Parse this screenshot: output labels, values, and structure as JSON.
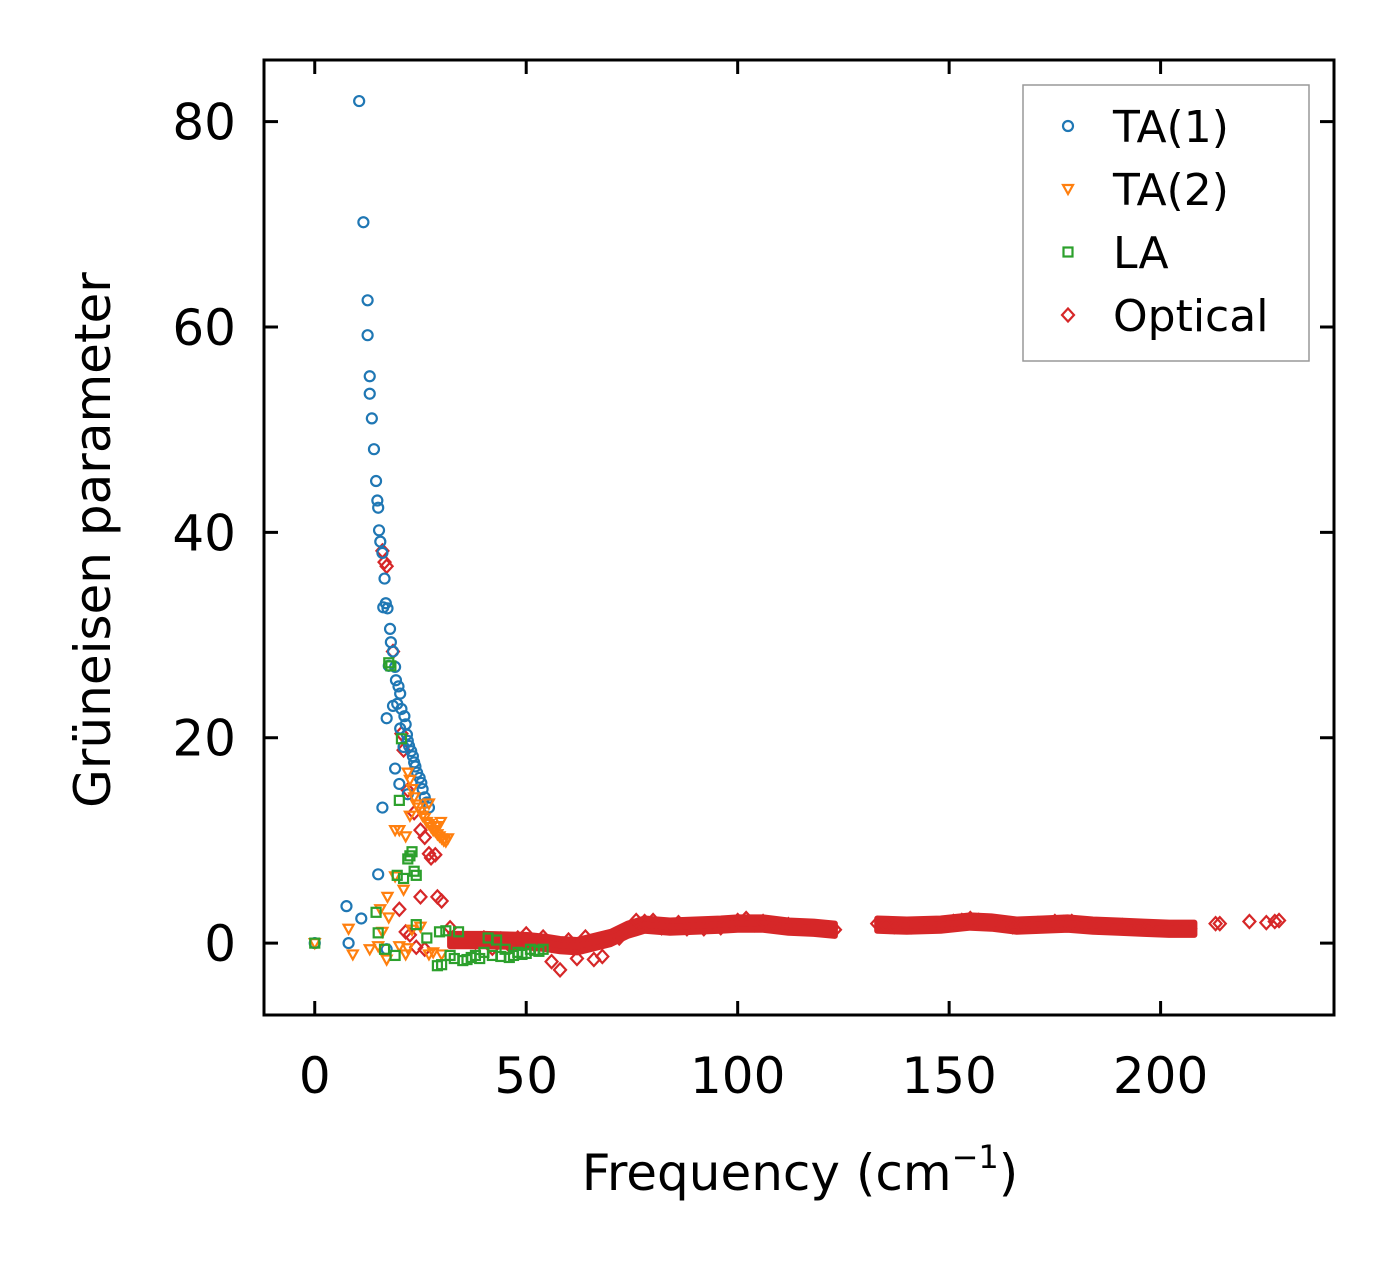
{
  "chart_data": {
    "type": "scatter",
    "title": "",
    "xlabel": "Frequency (cm",
    "xlabel_sup": "−1",
    "xlabel_close": ")",
    "ylabel": "Grüneisen parameter",
    "xlim": [
      -12,
      241
    ],
    "ylim": [
      -7,
      86
    ],
    "xticks": [
      0,
      50,
      100,
      150,
      200
    ],
    "yticks": [
      0,
      20,
      40,
      60,
      80
    ],
    "grid": false,
    "legend_position": "top-right",
    "series": [
      {
        "name": "TA(1)",
        "marker": "circle",
        "color": "#1f77b4",
        "points": [
          [
            0,
            0
          ],
          [
            7.5,
            3.6
          ],
          [
            8,
            0
          ],
          [
            11,
            2.4
          ],
          [
            17,
            -0.6
          ],
          [
            15,
            6.7
          ],
          [
            16,
            13.2
          ],
          [
            10.5,
            82
          ],
          [
            11.5,
            70.2
          ],
          [
            12.5,
            62.6
          ],
          [
            12.5,
            59.2
          ],
          [
            13,
            55.2
          ],
          [
            13,
            53.5
          ],
          [
            13.5,
            51.1
          ],
          [
            14,
            48.1
          ],
          [
            14.5,
            45
          ],
          [
            14.8,
            43.1
          ],
          [
            15,
            42.4
          ],
          [
            15.2,
            40.2
          ],
          [
            15.5,
            39.1
          ],
          [
            16,
            38
          ],
          [
            16.5,
            35.5
          ],
          [
            16.8,
            33.1
          ],
          [
            16.2,
            32.7
          ],
          [
            17.2,
            32.6
          ],
          [
            17.8,
            30.6
          ],
          [
            18,
            29.3
          ],
          [
            18.5,
            28.4
          ],
          [
            17.5,
            27
          ],
          [
            19,
            26.9
          ],
          [
            19.2,
            25.6
          ],
          [
            19.8,
            25
          ],
          [
            20.2,
            24.3
          ],
          [
            19.5,
            23.3
          ],
          [
            20.5,
            22.8
          ],
          [
            21.2,
            22.1
          ],
          [
            17,
            21.9
          ],
          [
            21.5,
            21.3
          ],
          [
            20.2,
            20.9
          ],
          [
            21.8,
            20.3
          ],
          [
            22,
            19.7
          ],
          [
            22.3,
            19.2
          ],
          [
            22.8,
            18.7
          ],
          [
            23.2,
            18.2
          ],
          [
            23.5,
            17.6
          ],
          [
            23.8,
            17.2
          ],
          [
            19,
            17
          ],
          [
            24.2,
            16.6
          ],
          [
            24.8,
            16.1
          ],
          [
            25.2,
            15.6
          ],
          [
            20,
            15.5
          ],
          [
            25.5,
            15
          ],
          [
            26,
            14.2
          ],
          [
            26.5,
            13.7
          ],
          [
            27,
            13.2
          ],
          [
            22,
            14.5
          ],
          [
            21,
            19.1
          ],
          [
            18.5,
            23.1
          ]
        ]
      },
      {
        "name": "TA(2)",
        "marker": "triangle-down",
        "color": "#ff7f0e",
        "points": [
          [
            0,
            0
          ],
          [
            8,
            1.4
          ],
          [
            9,
            -1.1
          ],
          [
            13,
            -0.6
          ],
          [
            15,
            -0.3
          ],
          [
            16,
            1.1
          ],
          [
            17,
            -1.6
          ],
          [
            17.5,
            2.5
          ],
          [
            19,
            6.5
          ],
          [
            20,
            -0.3
          ],
          [
            21,
            5.2
          ],
          [
            21.5,
            -1.1
          ],
          [
            22,
            -0.5
          ],
          [
            23,
            1.3
          ],
          [
            25,
            1.6
          ],
          [
            27,
            -1.1
          ],
          [
            28,
            -0.9
          ],
          [
            30,
            -1.1
          ],
          [
            15.5,
            3.3
          ],
          [
            17.2,
            4.5
          ],
          [
            19,
            11
          ],
          [
            20,
            11
          ],
          [
            21.5,
            10.4
          ],
          [
            22.5,
            12.4
          ],
          [
            22,
            16.6
          ],
          [
            22.5,
            15.9
          ],
          [
            23,
            15
          ],
          [
            23.5,
            14.2
          ],
          [
            24,
            13.5
          ],
          [
            24.5,
            13.2
          ],
          [
            25,
            12.8
          ],
          [
            25.5,
            12.4
          ],
          [
            26,
            12.2
          ],
          [
            26.5,
            11.8
          ],
          [
            27,
            11.6
          ],
          [
            27.5,
            11.3
          ],
          [
            28,
            11
          ],
          [
            28.5,
            10.9
          ],
          [
            29,
            10.6
          ],
          [
            29.5,
            10.4
          ],
          [
            30,
            10.2
          ],
          [
            30.5,
            10
          ],
          [
            31,
            9.9
          ],
          [
            31.5,
            10.2
          ],
          [
            28.8,
            11.4
          ],
          [
            29.8,
            11.8
          ],
          [
            27,
            13.6
          ]
        ]
      },
      {
        "name": "LA",
        "marker": "square",
        "color": "#2ca02c",
        "points": [
          [
            0,
            0
          ],
          [
            14.5,
            3
          ],
          [
            15,
            1
          ],
          [
            16.5,
            -0.6
          ],
          [
            17.5,
            27.3
          ],
          [
            18,
            27
          ],
          [
            19,
            -1.2
          ],
          [
            19.5,
            6.6
          ],
          [
            20,
            13.9
          ],
          [
            20.5,
            19.9
          ],
          [
            21,
            6.3
          ],
          [
            22,
            8.2
          ],
          [
            22.5,
            8.5
          ],
          [
            23,
            8.9
          ],
          [
            23.5,
            7
          ],
          [
            24,
            6.6
          ],
          [
            24,
            1.8
          ],
          [
            26.5,
            0.5
          ],
          [
            29,
            -2.2
          ],
          [
            30,
            -2.1
          ],
          [
            29.5,
            1.1
          ],
          [
            31,
            1.2
          ],
          [
            32,
            -1.2
          ],
          [
            33,
            -1.5
          ],
          [
            34,
            1.1
          ],
          [
            35,
            -1.7
          ],
          [
            36,
            -1.6
          ],
          [
            37,
            -1.4
          ],
          [
            38,
            -1.2
          ],
          [
            39,
            -1.5
          ],
          [
            40,
            -0.9
          ],
          [
            41,
            0.5
          ],
          [
            42,
            -1.2
          ],
          [
            43,
            0.3
          ],
          [
            44,
            -1.3
          ],
          [
            45,
            -0.6
          ],
          [
            46,
            -1.4
          ],
          [
            47,
            -1.2
          ],
          [
            48,
            -0.9
          ],
          [
            49,
            -1.1
          ],
          [
            50,
            -1
          ],
          [
            51,
            -0.6
          ],
          [
            52,
            -0.7
          ],
          [
            53,
            -0.8
          ],
          [
            54,
            -0.6
          ]
        ]
      },
      {
        "name": "Optical",
        "marker": "diamond",
        "color": "#d62728",
        "points": [
          [
            16,
            38.2
          ],
          [
            16.5,
            37.1
          ],
          [
            17,
            36.7
          ],
          [
            18.5,
            28.4
          ],
          [
            20.5,
            20.4
          ],
          [
            21,
            18.8
          ],
          [
            22,
            14.9
          ],
          [
            23.5,
            12.7
          ],
          [
            25,
            11
          ],
          [
            26,
            10.3
          ],
          [
            27,
            8.7
          ],
          [
            27.5,
            8.3
          ],
          [
            28.5,
            8.6
          ],
          [
            29,
            4.5
          ],
          [
            30,
            4.1
          ],
          [
            25,
            4.5
          ],
          [
            20,
            3.3
          ],
          [
            21.5,
            1.1
          ],
          [
            22.5,
            0.8
          ],
          [
            24,
            -0.4
          ],
          [
            26,
            -0.6
          ],
          [
            32,
            1.5
          ],
          [
            34,
            0.4
          ],
          [
            36,
            0.4
          ],
          [
            38,
            0.1
          ],
          [
            40,
            0.5
          ],
          [
            42,
            -0.5
          ],
          [
            44,
            0.4
          ],
          [
            46,
            -0.2
          ],
          [
            48,
            0.5
          ],
          [
            50,
            0.9
          ],
          [
            52,
            -0.2
          ],
          [
            54,
            0.6
          ],
          [
            56,
            -1.8
          ],
          [
            58,
            -2.6
          ],
          [
            60,
            0.3
          ],
          [
            62,
            -1.5
          ],
          [
            64,
            0.6
          ],
          [
            66,
            -1.6
          ],
          [
            68,
            -1.3
          ],
          [
            70,
            0.4
          ],
          [
            72,
            0.5
          ],
          [
            74,
            1.4
          ],
          [
            76,
            2.2
          ],
          [
            78,
            2.1
          ],
          [
            80,
            2.2
          ],
          [
            82,
            1.5
          ],
          [
            84,
            1.6
          ],
          [
            86,
            2
          ],
          [
            88,
            1.4
          ],
          [
            90,
            1.7
          ],
          [
            92,
            1.4
          ],
          [
            94,
            1.8
          ],
          [
            96,
            1.5
          ],
          [
            98,
            1.9
          ],
          [
            100,
            2.2
          ],
          [
            102,
            2.4
          ],
          [
            104,
            1.8
          ],
          [
            106,
            2.1
          ],
          [
            108,
            1.8
          ],
          [
            110,
            1.7
          ],
          [
            112,
            1.8
          ],
          [
            114,
            1.5
          ],
          [
            116,
            1.6
          ],
          [
            118,
            1.5
          ],
          [
            120,
            1.5
          ],
          [
            122,
            1.4
          ],
          [
            123,
            1.3
          ],
          [
            133,
            1.9
          ],
          [
            135,
            1.8
          ],
          [
            137,
            1.6
          ],
          [
            139,
            1.7
          ],
          [
            141,
            1.6
          ],
          [
            143,
            1.8
          ],
          [
            145,
            1.7
          ],
          [
            147,
            1.8
          ],
          [
            149,
            1.9
          ],
          [
            151,
            2.1
          ],
          [
            153,
            2.2
          ],
          [
            155,
            2.4
          ],
          [
            157,
            2.2
          ],
          [
            159,
            2.1
          ],
          [
            161,
            2
          ],
          [
            163,
            1.9
          ],
          [
            165,
            1.6
          ],
          [
            167,
            1.7
          ],
          [
            169,
            1.8
          ],
          [
            171,
            1.9
          ],
          [
            173,
            1.8
          ],
          [
            175,
            2.1
          ],
          [
            177,
            2
          ],
          [
            179,
            2.1
          ],
          [
            181,
            1.9
          ],
          [
            183,
            1.7
          ],
          [
            185,
            1.6
          ],
          [
            187,
            1.6
          ],
          [
            189,
            1.7
          ],
          [
            191,
            1.7
          ],
          [
            193,
            1.6
          ],
          [
            195,
            1.6
          ],
          [
            197,
            1.5
          ],
          [
            199,
            1.5
          ],
          [
            201,
            1.5
          ],
          [
            203,
            1.4
          ],
          [
            205,
            1.4
          ],
          [
            207,
            1.4
          ],
          [
            213,
            1.9
          ],
          [
            214,
            1.9
          ],
          [
            221,
            2.1
          ],
          [
            225,
            2
          ],
          [
            227,
            2.1
          ],
          [
            228,
            2.2
          ]
        ]
      }
    ],
    "optical_band": {
      "color": "#d62728",
      "segments": [
        [
          [
            32,
            0.3
          ],
          [
            40,
            0.3
          ],
          [
            50,
            0.2
          ],
          [
            55,
            0
          ],
          [
            58,
            -0.2
          ],
          [
            62,
            -0.3
          ],
          [
            66,
            0.1
          ],
          [
            70,
            0.5
          ],
          [
            74,
            1.3
          ],
          [
            78,
            1.8
          ],
          [
            84,
            1.6
          ],
          [
            90,
            1.7
          ],
          [
            96,
            1.8
          ],
          [
            100,
            1.9
          ],
          [
            106,
            1.9
          ],
          [
            112,
            1.6
          ],
          [
            118,
            1.5
          ],
          [
            123,
            1.3
          ]
        ],
        [
          [
            133,
            1.8
          ],
          [
            140,
            1.7
          ],
          [
            148,
            1.8
          ],
          [
            155,
            2.1
          ],
          [
            160,
            2
          ],
          [
            166,
            1.7
          ],
          [
            172,
            1.8
          ],
          [
            178,
            1.9
          ],
          [
            184,
            1.7
          ],
          [
            190,
            1.6
          ],
          [
            196,
            1.5
          ],
          [
            202,
            1.4
          ],
          [
            208,
            1.4
          ]
        ]
      ],
      "half_width": 0.6
    }
  }
}
